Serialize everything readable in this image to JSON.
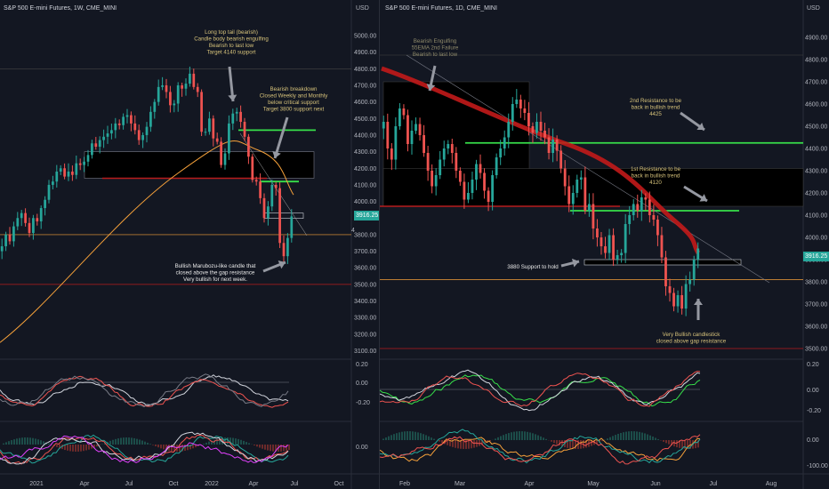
{
  "colors": {
    "bg": "#131722",
    "bull": "#26a69a",
    "bear": "#ef5350",
    "ema": "#f6a13a",
    "ema200": "#c21a1a",
    "green_line": "#37e04a",
    "support_red": "#b71c1c",
    "arrow": "#9598a1",
    "ann_yellow": "#d6c27a",
    "ann_white": "#e8e8e8",
    "ann_gray": "#8f8a6a",
    "price_tag": "#26a69a"
  },
  "left_chart": {
    "title": "S&P 500 E-mini Futures, 1W, CME_MINI",
    "currency": "USD",
    "price_tag": "3916.25",
    "hline_label": "4"
  },
  "right_chart": {
    "title": "S&P 500 E-mini Futures, 1D, CME_MINI",
    "currency": "USD",
    "price_tag": "3916.25"
  },
  "annotations": {
    "left_top": [
      "Long top tail (bearish)",
      "Candle body bearish engulfing",
      "Bearish to last low",
      "Target 4140 support"
    ],
    "left_mid": [
      "Bearish breakdown",
      "Closed Weekly and Monthly",
      "below critical support",
      "Target 3800 support next"
    ],
    "left_bottom": [
      "Bullish Marubozu-like candle that",
      "closed above the gap resistance",
      "Very bullish for next week."
    ],
    "right_top": [
      "Bearish Engulfing",
      "55EMA 2nd Failure",
      "Bearish to last low"
    ],
    "right_res2": [
      "2nd Resistance to be",
      "back in bullish trend",
      "4425"
    ],
    "right_res1": [
      "1st Resistance to be",
      "back in bullish trend",
      "4120"
    ],
    "right_support": "3880 Support to hold",
    "right_bottom": [
      "Very Bullish candlestick",
      "closed above gap resistance"
    ]
  },
  "chart_data": [
    {
      "type": "candlestick",
      "title": "S&P 500 E-mini Futures, 1W, CME_MINI",
      "timeframe": "1W",
      "ylabel": "USD",
      "ylim": [
        3060,
        5150
      ],
      "y_ticks": [
        "5000.00",
        "4900.00",
        "4800.00",
        "4700.00",
        "4600.00",
        "4500.00",
        "4400.00",
        "4300.00",
        "4200.00",
        "4100.00",
        "4000.00",
        "3900.00",
        "3800.00",
        "3700.00",
        "3600.00",
        "3500.00",
        "3400.00",
        "3300.00",
        "3200.00",
        "3100.00"
      ],
      "x_ticks": [
        "2021",
        "Apr",
        "Jul",
        "Oct",
        "2022",
        "Apr",
        "Jul",
        "Oct"
      ],
      "close_series": [
        3730,
        3800,
        3760,
        3850,
        3900,
        3930,
        3870,
        3810,
        3900,
        3880,
        3960,
        4010,
        4100,
        4120,
        4180,
        4200,
        4150,
        4180,
        4160,
        4230,
        4220,
        4240,
        4280,
        4350,
        4330,
        4370,
        4390,
        4410,
        4430,
        4470,
        4460,
        4510,
        4520,
        4470,
        4430,
        4370,
        4400,
        4450,
        4540,
        4600,
        4690,
        4700,
        4660,
        4580,
        4590,
        4700,
        4680,
        4710,
        4770,
        4690,
        4660,
        4420,
        4420,
        4500,
        4380,
        4360,
        4220,
        4290,
        4470,
        4530,
        4540,
        4480,
        4390,
        4270,
        4130,
        4120,
        4020,
        3900,
        3970,
        4100,
        4080,
        3750,
        3670,
        3780,
        3910
      ],
      "indicators": [
        "EMA (orange)"
      ],
      "price_tag": "3916.25",
      "zones": [
        {
          "low": 4140,
          "high": 4300
        }
      ],
      "horizontal_lines": [
        4430,
        4120,
        4140,
        3800,
        3500,
        4800
      ]
    },
    {
      "type": "candlestick",
      "title": "S&P 500 E-mini Futures, 1D, CME_MINI",
      "timeframe": "1D",
      "ylabel": "USD",
      "ylim": [
        3460,
        5020
      ],
      "y_ticks": [
        "4900.00",
        "4800.00",
        "4700.00",
        "4600.00",
        "4500.00",
        "4400.00",
        "4300.00",
        "4200.00",
        "4100.00",
        "4000.00",
        "3900.00",
        "3800.00",
        "3700.00",
        "3600.00",
        "3500.00"
      ],
      "x_ticks": [
        "Feb",
        "Mar",
        "Apr",
        "May",
        "Jun",
        "Jul",
        "Aug"
      ],
      "close_series": [
        4520,
        4400,
        4350,
        4500,
        4580,
        4550,
        4420,
        4480,
        4510,
        4460,
        4380,
        4300,
        4230,
        4280,
        4350,
        4400,
        4420,
        4380,
        4300,
        4250,
        4170,
        4200,
        4260,
        4330,
        4290,
        4210,
        4160,
        4280,
        4360,
        4400,
        4450,
        4520,
        4600,
        4620,
        4580,
        4560,
        4500,
        4470,
        4520,
        4480,
        4450,
        4380,
        4440,
        4390,
        4310,
        4230,
        4150,
        4200,
        4260,
        4270,
        4120,
        4150,
        4040,
        4000,
        3960,
        3930,
        4010,
        3900,
        3920,
        3930,
        4060,
        4100,
        4150,
        4120,
        4180,
        4170,
        4100,
        4080,
        4010,
        3910,
        3780,
        3750,
        3690,
        3740,
        3680,
        3790,
        3810,
        3900,
        3950
      ],
      "indicators": [
        "200EMA (red)"
      ],
      "price_tag": "3916.25",
      "zones": [
        {
          "low": 4140,
          "high": 4700
        },
        {
          "low": 4140,
          "high": 4310
        }
      ],
      "horizontal_lines": [
        4425,
        4120,
        3880,
        3810,
        3500,
        4820
      ]
    }
  ]
}
